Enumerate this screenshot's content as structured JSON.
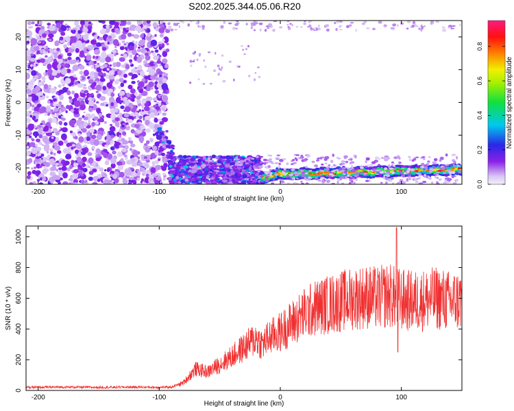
{
  "figure": {
    "title": "S202.2025.344.05.06.R20"
  },
  "chart_data": [
    {
      "type": "heatmap",
      "title": "S202.2025.344.05.06.R20",
      "xlabel": "Height of straight line (km)",
      "ylabel": "Frequency (Hz)",
      "xlim": [
        -210,
        150
      ],
      "ylim": [
        -25,
        25
      ],
      "xticks": [
        -200,
        -100,
        0,
        100
      ],
      "yticks": [
        -20,
        -10,
        0,
        10,
        20
      ],
      "colorbar": {
        "label": "Normalized spectral amplitude",
        "range": [
          0.0,
          0.95
        ],
        "ticks": [
          "0.0",
          "0.2",
          "0.4",
          "0.6",
          "0.8"
        ],
        "tick_values": [
          0.0,
          0.2,
          0.4,
          0.6,
          0.8
        ],
        "colormap": "rainbow (white/lavender → violet → blue → cyan → green → yellow → red → magenta)"
      },
      "features": [
        {
          "name": "broadband speckle",
          "x_range": [
            -210,
            -93
          ],
          "y_range": [
            -25,
            25
          ],
          "amplitude": "0.05-0.2"
        },
        {
          "name": "rising tone",
          "x_range": [
            -98,
            -90
          ],
          "y_approx": -12,
          "amplitude": "0.3"
        },
        {
          "name": "low-frequency band",
          "x_range": [
            -90,
            -15
          ],
          "y_range": [
            -25,
            -17
          ],
          "amplitude": "0.2-0.35"
        },
        {
          "name": "narrow line",
          "x_range": [
            -15,
            150
          ],
          "y_approx": -22,
          "amplitude": "0.5-0.9"
        }
      ],
      "grid": false
    },
    {
      "type": "line",
      "xlabel": "Height of straight line (km)",
      "ylabel": "SNR (10 * v/v)",
      "xlim": [
        -210,
        150
      ],
      "ylim": [
        0,
        1070
      ],
      "xticks": [
        -200,
        -100,
        0,
        100
      ],
      "yticks": [
        0,
        200,
        400,
        600,
        800,
        1000
      ],
      "series_color": "#f03030",
      "x": [
        -210,
        -180,
        -150,
        -120,
        -100,
        -90,
        -80,
        -70,
        -60,
        -50,
        -40,
        -30,
        -20,
        -15,
        -10,
        0,
        10,
        20,
        30,
        40,
        50,
        60,
        70,
        80,
        90,
        95,
        100,
        110,
        120,
        130,
        140,
        150
      ],
      "y": [
        20,
        22,
        20,
        22,
        20,
        22,
        50,
        140,
        120,
        170,
        220,
        280,
        340,
        300,
        340,
        380,
        440,
        500,
        540,
        560,
        580,
        600,
        610,
        600,
        620,
        600,
        590,
        580,
        590,
        600,
        580,
        590
      ],
      "peaks": [
        {
          "x": 96,
          "y": 1060
        },
        {
          "x": 97,
          "y": 250
        }
      ],
      "grid": false
    }
  ]
}
